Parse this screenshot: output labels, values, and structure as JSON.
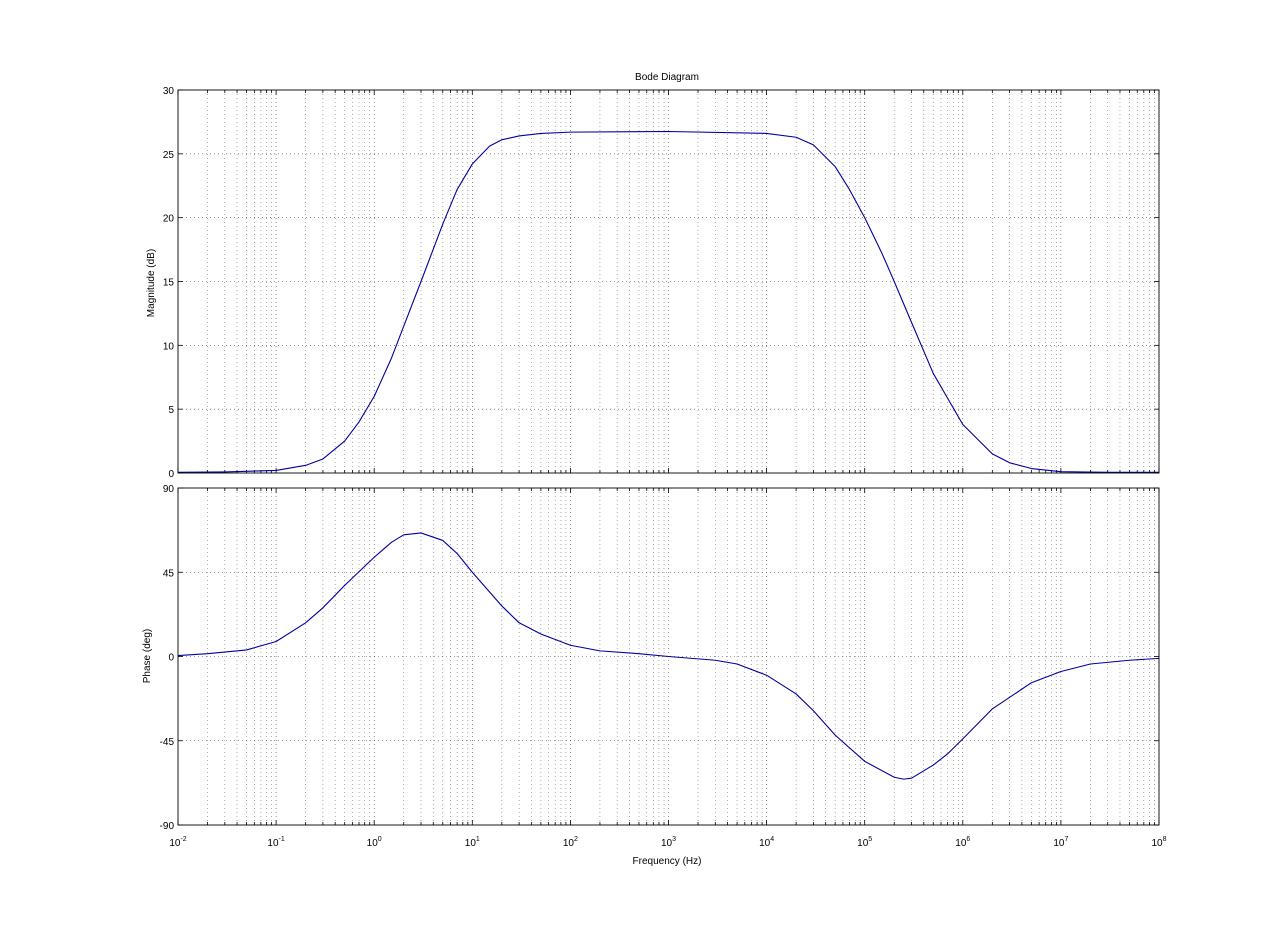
{
  "chart_data": [
    {
      "type": "line",
      "title": "Bode Diagram",
      "ylabel": "Magnitude (dB)",
      "xlabel": "",
      "xscale": "log",
      "xlim": [
        0.01,
        100000000
      ],
      "ylim": [
        0,
        30
      ],
      "yticks": [
        0,
        5,
        10,
        15,
        20,
        25,
        30
      ],
      "grid": true,
      "color": "#0000a0",
      "series": [
        {
          "x": [
            0.01,
            0.03,
            0.1,
            0.2,
            0.3,
            0.5,
            0.7,
            1,
            1.5,
            2,
            3,
            5,
            7,
            10,
            15,
            20,
            30,
            50,
            100,
            1000,
            10000,
            20000,
            30000,
            50000,
            70000,
            100000,
            150000,
            200000,
            300000,
            500000,
            1000000,
            2000000,
            3000000,
            5000000,
            10000000,
            30000000,
            100000000
          ],
          "y": [
            0.05,
            0.08,
            0.2,
            0.6,
            1.1,
            2.5,
            4.0,
            6.0,
            9.0,
            11.5,
            15.0,
            19.5,
            22.2,
            24.2,
            25.6,
            26.1,
            26.4,
            26.6,
            26.7,
            26.75,
            26.6,
            26.3,
            25.7,
            24.0,
            22.2,
            20.0,
            17.2,
            15.0,
            11.8,
            7.8,
            3.8,
            1.5,
            0.8,
            0.35,
            0.1,
            0.05,
            0.05
          ]
        }
      ]
    },
    {
      "type": "line",
      "title": "",
      "ylabel": "Phase (deg)",
      "xlabel": "Frequency  (Hz)",
      "xscale": "log",
      "xlim": [
        0.01,
        100000000
      ],
      "xtick_labels": [
        {
          "base": "10",
          "exp": "-2"
        },
        {
          "base": "10",
          "exp": "-1"
        },
        {
          "base": "10",
          "exp": "0"
        },
        {
          "base": "10",
          "exp": "1"
        },
        {
          "base": "10",
          "exp": "2"
        },
        {
          "base": "10",
          "exp": "3"
        },
        {
          "base": "10",
          "exp": "4"
        },
        {
          "base": "10",
          "exp": "5"
        },
        {
          "base": "10",
          "exp": "6"
        },
        {
          "base": "10",
          "exp": "7"
        },
        {
          "base": "10",
          "exp": "8"
        }
      ],
      "ylim": [
        -90,
        90
      ],
      "yticks": [
        -90,
        -45,
        0,
        45,
        90
      ],
      "grid": true,
      "color": "#0000a0",
      "series": [
        {
          "x": [
            0.01,
            0.02,
            0.05,
            0.1,
            0.2,
            0.3,
            0.5,
            1,
            1.5,
            2,
            3,
            5,
            7,
            10,
            20,
            30,
            50,
            100,
            200,
            500,
            1000,
            3000,
            5000,
            10000,
            20000,
            30000,
            50000,
            100000,
            200000,
            250000,
            300000,
            500000,
            700000,
            1000000,
            2000000,
            5000000,
            10000000,
            20000000,
            50000000,
            100000000
          ],
          "y": [
            0.5,
            1.5,
            3.5,
            8,
            18,
            26,
            38,
            53,
            61,
            65,
            66,
            62,
            55,
            45,
            27,
            18,
            12,
            6,
            3,
            1.5,
            0,
            -2,
            -4,
            -10,
            -20,
            -29,
            -42,
            -56,
            -64.5,
            -65.5,
            -65,
            -58,
            -52,
            -44,
            -28,
            -14,
            -8,
            -4,
            -2,
            -1
          ]
        }
      ]
    }
  ]
}
